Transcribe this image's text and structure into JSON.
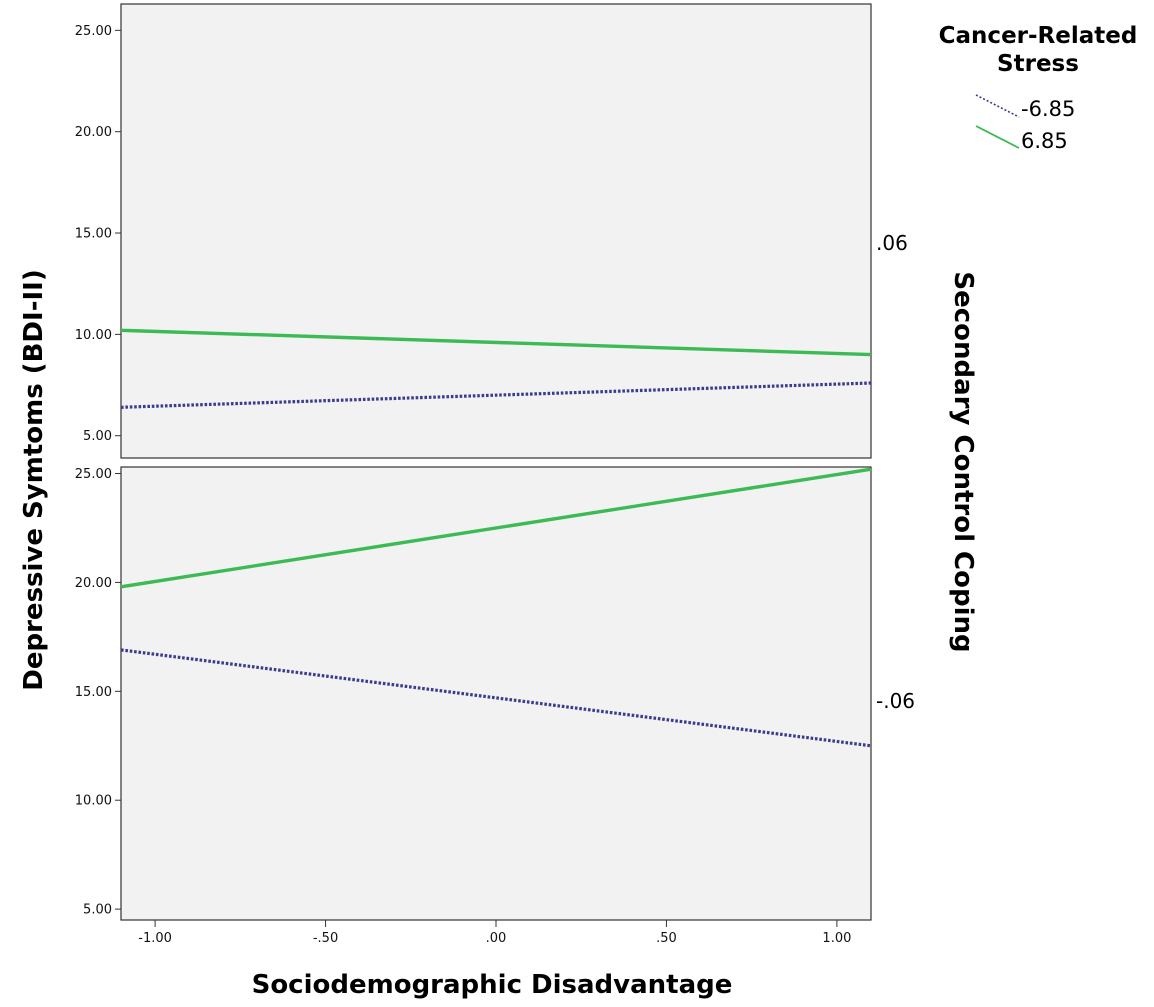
{
  "chart_data": {
    "type": "line",
    "xlabel": "Sociodemographic Disadvantage",
    "ylabel": "Depressive Symtoms (BDI-II)",
    "facet_label": "Secondary Control Coping",
    "legend": {
      "title": "Cancer-Related Stress",
      "title_lines": [
        "Cancer-Related",
        "Stress"
      ],
      "placement": "top-right"
    },
    "x_ticks": [
      -1.0,
      -0.5,
      0.0,
      0.5,
      1.0
    ],
    "x_tick_labels": [
      "-1.00",
      "-.50",
      ".00",
      ".50",
      "1.00"
    ],
    "xlim": [
      -1.1,
      1.1
    ],
    "grid": false,
    "panels": [
      {
        "facet_value": ".06",
        "ylim": [
          3.9,
          26.3
        ],
        "y_ticks": [
          5,
          10,
          15,
          20,
          25
        ],
        "y_tick_labels": [
          "5.00",
          "10.00",
          "15.00",
          "20.00",
          "25.00"
        ],
        "series": [
          {
            "name": "-6.85",
            "color": "#3b3b8f",
            "dash": "dotted",
            "x": [
              -1.1,
              1.1
            ],
            "y": [
              6.4,
              7.6
            ]
          },
          {
            "name": "6.85",
            "color": "#3cba54",
            "dash": "solid",
            "x": [
              -1.1,
              1.1
            ],
            "y": [
              10.2,
              9.0
            ]
          }
        ]
      },
      {
        "facet_value": "-.06",
        "ylim": [
          4.5,
          25.3
        ],
        "y_ticks": [
          5,
          10,
          15,
          20,
          25
        ],
        "y_tick_labels": [
          "5.00",
          "10.00",
          "15.00",
          "20.00",
          "25.00"
        ],
        "series": [
          {
            "name": "-6.85",
            "color": "#3b3b8f",
            "dash": "dotted",
            "x": [
              -1.1,
              1.1
            ],
            "y": [
              16.9,
              12.5
            ]
          },
          {
            "name": "6.85",
            "color": "#3cba54",
            "dash": "solid",
            "x": [
              -1.1,
              1.1
            ],
            "y": [
              19.8,
              25.2
            ]
          }
        ]
      }
    ]
  }
}
